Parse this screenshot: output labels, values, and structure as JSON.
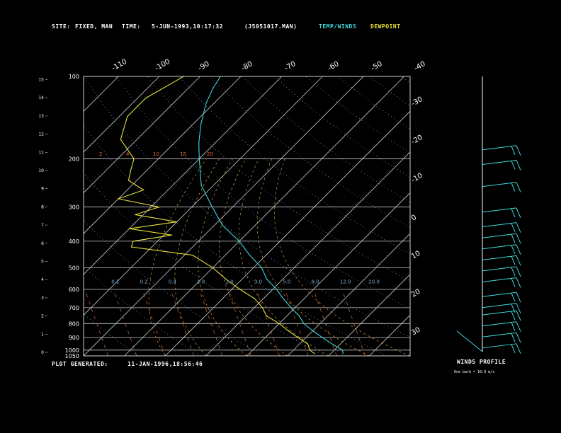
{
  "header": {
    "site_label": "SITE:",
    "site_value": "FIXED, MAN",
    "time_label": "TIME:",
    "time_value": "5-JUN-1993,10:17:32",
    "file": "(J5051017.MAN)",
    "temp_legend": "TEMP/WINDS",
    "dew_legend": "DEWPOINT"
  },
  "footer": {
    "generated_label": "PLOT GENERATED:",
    "generated_value": "11-JAN-1996,18:56:46"
  },
  "winds": {
    "title": "WINDS PROFILE",
    "note": "One barb = 10.0 m/s"
  },
  "colors": {
    "temp": "#3fd8dc",
    "dew": "#e6e03a",
    "grid": "#c8c8c8",
    "mixing": "#e06a3a",
    "dry_adiabat": "#7fb0d8",
    "moist_adiabat": "#d8a040"
  },
  "chart_data": {
    "type": "line",
    "diagram": "skew-T log-P",
    "pressure_ticks": [
      "1050",
      "1000",
      "900",
      "800",
      "700",
      "600",
      "500",
      "400",
      "300",
      "200",
      "100"
    ],
    "height_ticks": [
      "0",
      "1",
      "2",
      "3",
      "4",
      "5",
      "6",
      "7",
      "8",
      "9",
      "10",
      "11",
      "12",
      "13",
      "14",
      "15"
    ],
    "top_temp_labels": [
      "-110",
      "-100",
      "-90",
      "-80",
      "-70",
      "-60",
      "-50",
      "-40"
    ],
    "right_temp_labels": [
      "-30",
      "-20",
      "-10",
      "0",
      "10",
      "20",
      "30"
    ],
    "mixing_ratio_labels": [
      "0.1",
      "0.2",
      "0.4",
      "1.0",
      "2.0",
      "3.0",
      "5.0",
      "8.0",
      "12.0",
      "20.0"
    ],
    "isotherm_labels_upper": [
      "2",
      "4",
      "10",
      "15",
      "20"
    ],
    "series": [
      {
        "name": "TEMP/WINDS",
        "points": [
          [
            1030,
            23
          ],
          [
            1000,
            22
          ],
          [
            950,
            18
          ],
          [
            900,
            14
          ],
          [
            850,
            10
          ],
          [
            800,
            6
          ],
          [
            750,
            3
          ],
          [
            700,
            -1
          ],
          [
            650,
            -5
          ],
          [
            600,
            -9
          ],
          [
            550,
            -14
          ],
          [
            500,
            -18
          ],
          [
            450,
            -24
          ],
          [
            400,
            -30
          ],
          [
            350,
            -38
          ],
          [
            300,
            -45
          ],
          [
            250,
            -53
          ],
          [
            200,
            -60
          ],
          [
            175,
            -64
          ],
          [
            150,
            -68
          ],
          [
            125,
            -72
          ],
          [
            110,
            -74
          ],
          [
            100,
            -75
          ]
        ]
      },
      {
        "name": "DEWPOINT",
        "points": [
          [
            1030,
            16
          ],
          [
            1000,
            14
          ],
          [
            950,
            12
          ],
          [
            900,
            8
          ],
          [
            850,
            4
          ],
          [
            800,
            0
          ],
          [
            750,
            -5
          ],
          [
            700,
            -8
          ],
          [
            650,
            -12
          ],
          [
            600,
            -18
          ],
          [
            550,
            -24
          ],
          [
            500,
            -30
          ],
          [
            450,
            -38
          ],
          [
            420,
            -55
          ],
          [
            400,
            -56
          ],
          [
            380,
            -48
          ],
          [
            360,
            -60
          ],
          [
            340,
            -50
          ],
          [
            320,
            -62
          ],
          [
            300,
            -58
          ],
          [
            280,
            -70
          ],
          [
            260,
            -66
          ],
          [
            240,
            -72
          ],
          [
            220,
            -74
          ],
          [
            200,
            -76
          ],
          [
            170,
            -84
          ],
          [
            140,
            -88
          ],
          [
            120,
            -88
          ],
          [
            100,
            -84
          ]
        ]
      }
    ],
    "wind_barbs": [
      {
        "height_km": 11.0,
        "speed": 20
      },
      {
        "height_km": 10.2,
        "speed": 20
      },
      {
        "height_km": 9.0,
        "speed": 20
      },
      {
        "height_km": 7.6,
        "speed": 20
      },
      {
        "height_km": 6.8,
        "speed": 20
      },
      {
        "height_km": 6.2,
        "speed": 20
      },
      {
        "height_km": 5.6,
        "speed": 20
      },
      {
        "height_km": 5.0,
        "speed": 20
      },
      {
        "height_km": 4.4,
        "speed": 20
      },
      {
        "height_km": 3.8,
        "speed": 20
      },
      {
        "height_km": 3.0,
        "speed": 20
      },
      {
        "height_km": 2.4,
        "speed": 20
      },
      {
        "height_km": 2.0,
        "speed": 20
      },
      {
        "height_km": 1.4,
        "speed": 20
      },
      {
        "height_km": 0.8,
        "speed": 20
      },
      {
        "height_km": 0.2,
        "speed": 20
      }
    ]
  }
}
